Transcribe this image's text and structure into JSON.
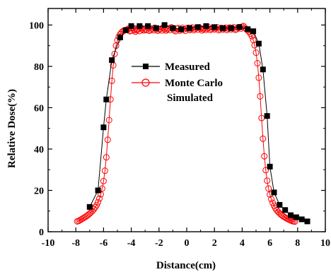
{
  "chart_data": {
    "type": "line",
    "xlabel": "Distance(cm)",
    "ylabel": "Relative Dose(%)",
    "xlim": [
      -10,
      10
    ],
    "ylim": [
      0,
      108
    ],
    "x_ticks": [
      "-10",
      "-8",
      "-6",
      "-4",
      "-2",
      "0",
      "2",
      "4",
      "6",
      "8",
      "10"
    ],
    "y_ticks": [
      "0",
      "20",
      "40",
      "60",
      "80",
      "100"
    ],
    "grid": false,
    "legend_position": "upper-center",
    "series": [
      {
        "name": "Measured",
        "marker": "filled-square",
        "color": "#000000",
        "x": [
          -7.0,
          -6.4,
          -6.0,
          -5.8,
          -5.4,
          -4.8,
          -4.4,
          -4.0,
          -3.4,
          -2.8,
          -2.2,
          -1.6,
          -1.0,
          -0.4,
          0.2,
          0.8,
          1.4,
          2.0,
          2.6,
          3.2,
          3.8,
          4.4,
          4.8,
          5.2,
          5.5,
          5.8,
          6.0,
          6.3,
          6.7,
          7.1,
          7.5,
          7.9,
          8.3,
          8.7
        ],
        "y": [
          12,
          20,
          50.5,
          64,
          83,
          94,
          97.5,
          99.5,
          99.5,
          99.5,
          98.5,
          100,
          98.5,
          98,
          98.5,
          99,
          99.5,
          99,
          98.5,
          98.5,
          99,
          98,
          97,
          91,
          78.5,
          56,
          31.5,
          19,
          13,
          10.5,
          8,
          7,
          6,
          5
        ]
      },
      {
        "name": "Monte Carlo Simulated",
        "marker": "open-circle",
        "color": "#ff0000",
        "x": [
          -7.9,
          -7.8,
          -7.7,
          -7.6,
          -7.5,
          -7.4,
          -7.3,
          -7.2,
          -7.1,
          -7.0,
          -6.9,
          -6.8,
          -6.7,
          -6.6,
          -6.5,
          -6.4,
          -6.3,
          -6.2,
          -6.1,
          -6.0,
          -5.9,
          -5.8,
          -5.7,
          -5.6,
          -5.5,
          -5.4,
          -5.3,
          -5.2,
          -5.1,
          -5.0,
          -4.9,
          -4.8,
          -4.7,
          -4.6,
          -4.5,
          -4.4,
          -4.3,
          -4.2,
          -4.1,
          -4.0,
          -3.9,
          -3.8,
          -3.7,
          -3.6,
          -3.5,
          -3.4,
          -3.3,
          -3.2,
          -3.1,
          -3.0,
          -2.9,
          -2.8,
          -2.7,
          -2.6,
          -2.5,
          -2.4,
          -2.3,
          -2.2,
          -2.1,
          -2.0,
          -1.9,
          -1.8,
          -1.7,
          -1.6,
          -1.5,
          -1.4,
          -1.3,
          -1.2,
          -1.1,
          -1.0,
          -0.9,
          -0.8,
          -0.7,
          -0.6,
          -0.5,
          -0.4,
          -0.3,
          -0.2,
          -0.1,
          0.0,
          0.1,
          0.2,
          0.3,
          0.4,
          0.5,
          0.6,
          0.7,
          0.8,
          0.9,
          1.0,
          1.1,
          1.2,
          1.3,
          1.4,
          1.5,
          1.6,
          1.7,
          1.8,
          1.9,
          2.0,
          2.1,
          2.2,
          2.3,
          2.4,
          2.5,
          2.6,
          2.7,
          2.8,
          2.9,
          3.0,
          3.1,
          3.2,
          3.3,
          3.4,
          3.5,
          3.6,
          3.7,
          3.8,
          3.9,
          4.0,
          4.1,
          4.2,
          4.3,
          4.4,
          4.5,
          4.6,
          4.7,
          4.8,
          4.9,
          5.0,
          5.1,
          5.2,
          5.3,
          5.4,
          5.5,
          5.6,
          5.7,
          5.8,
          5.9,
          6.0,
          6.1,
          6.2,
          6.3,
          6.4,
          6.5,
          6.6,
          6.7,
          6.8,
          6.9,
          7.0,
          7.1,
          7.2,
          7.3,
          7.4,
          7.5,
          7.6,
          7.7,
          7.8
        ],
        "y": [
          5.0,
          5.2,
          5.6,
          6.0,
          6.4,
          6.8,
          7.2,
          7.7,
          8.2,
          8.8,
          9.4,
          10.1,
          10.9,
          11.8,
          12.9,
          14.3,
          16.0,
          18.1,
          20.9,
          24.5,
          29.5,
          36.0,
          44.5,
          54.0,
          64.0,
          73.0,
          80.5,
          86.0,
          90.0,
          92.6,
          94.4,
          95.6,
          96.4,
          97.0,
          97.4,
          97.6,
          97.8,
          98.2,
          97.0,
          97.3,
          98.5,
          97.5,
          96.8,
          97.5,
          98.0,
          97.1,
          98.6,
          97.8,
          97.4,
          98.0,
          97.6,
          98.9,
          97.2,
          97.7,
          98.3,
          97.5,
          98.7,
          97.9,
          97.2,
          97.8,
          98.1,
          97.4,
          98.8,
          98.0,
          97.3,
          97.9,
          98.4,
          97.6,
          98.9,
          98.1,
          97.5,
          97.0,
          98.2,
          98.5,
          97.3,
          97.8,
          98.6,
          97.9,
          97.2,
          98.3,
          98.7,
          97.6,
          98.0,
          98.8,
          97.5,
          98.1,
          98.5,
          97.8,
          98.9,
          98.2,
          97.4,
          98.0,
          98.6,
          97.7,
          98.3,
          98.8,
          97.6,
          98.1,
          98.7,
          97.9,
          98.4,
          98.9,
          97.5,
          98.0,
          98.6,
          97.8,
          98.3,
          98.7,
          97.6,
          98.2,
          98.8,
          97.9,
          98.4,
          98.9,
          97.7,
          98.0,
          98.6,
          99.0,
          98.3,
          99.2,
          99.5,
          98.6,
          98.0,
          97.4,
          96.8,
          95.8,
          94.6,
          92.8,
          90.2,
          86.6,
          81.5,
          74.5,
          65.5,
          55.0,
          45.0,
          36.5,
          29.8,
          24.7,
          20.9,
          18.0,
          15.8,
          14.0,
          12.6,
          11.4,
          10.4,
          9.6,
          8.9,
          8.3,
          7.8,
          7.3,
          6.9,
          6.5,
          6.1,
          5.8,
          5.5,
          5.2,
          5.0,
          4.9
        ]
      }
    ]
  },
  "legend": {
    "items": [
      {
        "label_lines": [
          "Measured"
        ]
      },
      {
        "label_lines": [
          "Monte Carlo",
          "Simulated"
        ]
      }
    ]
  }
}
